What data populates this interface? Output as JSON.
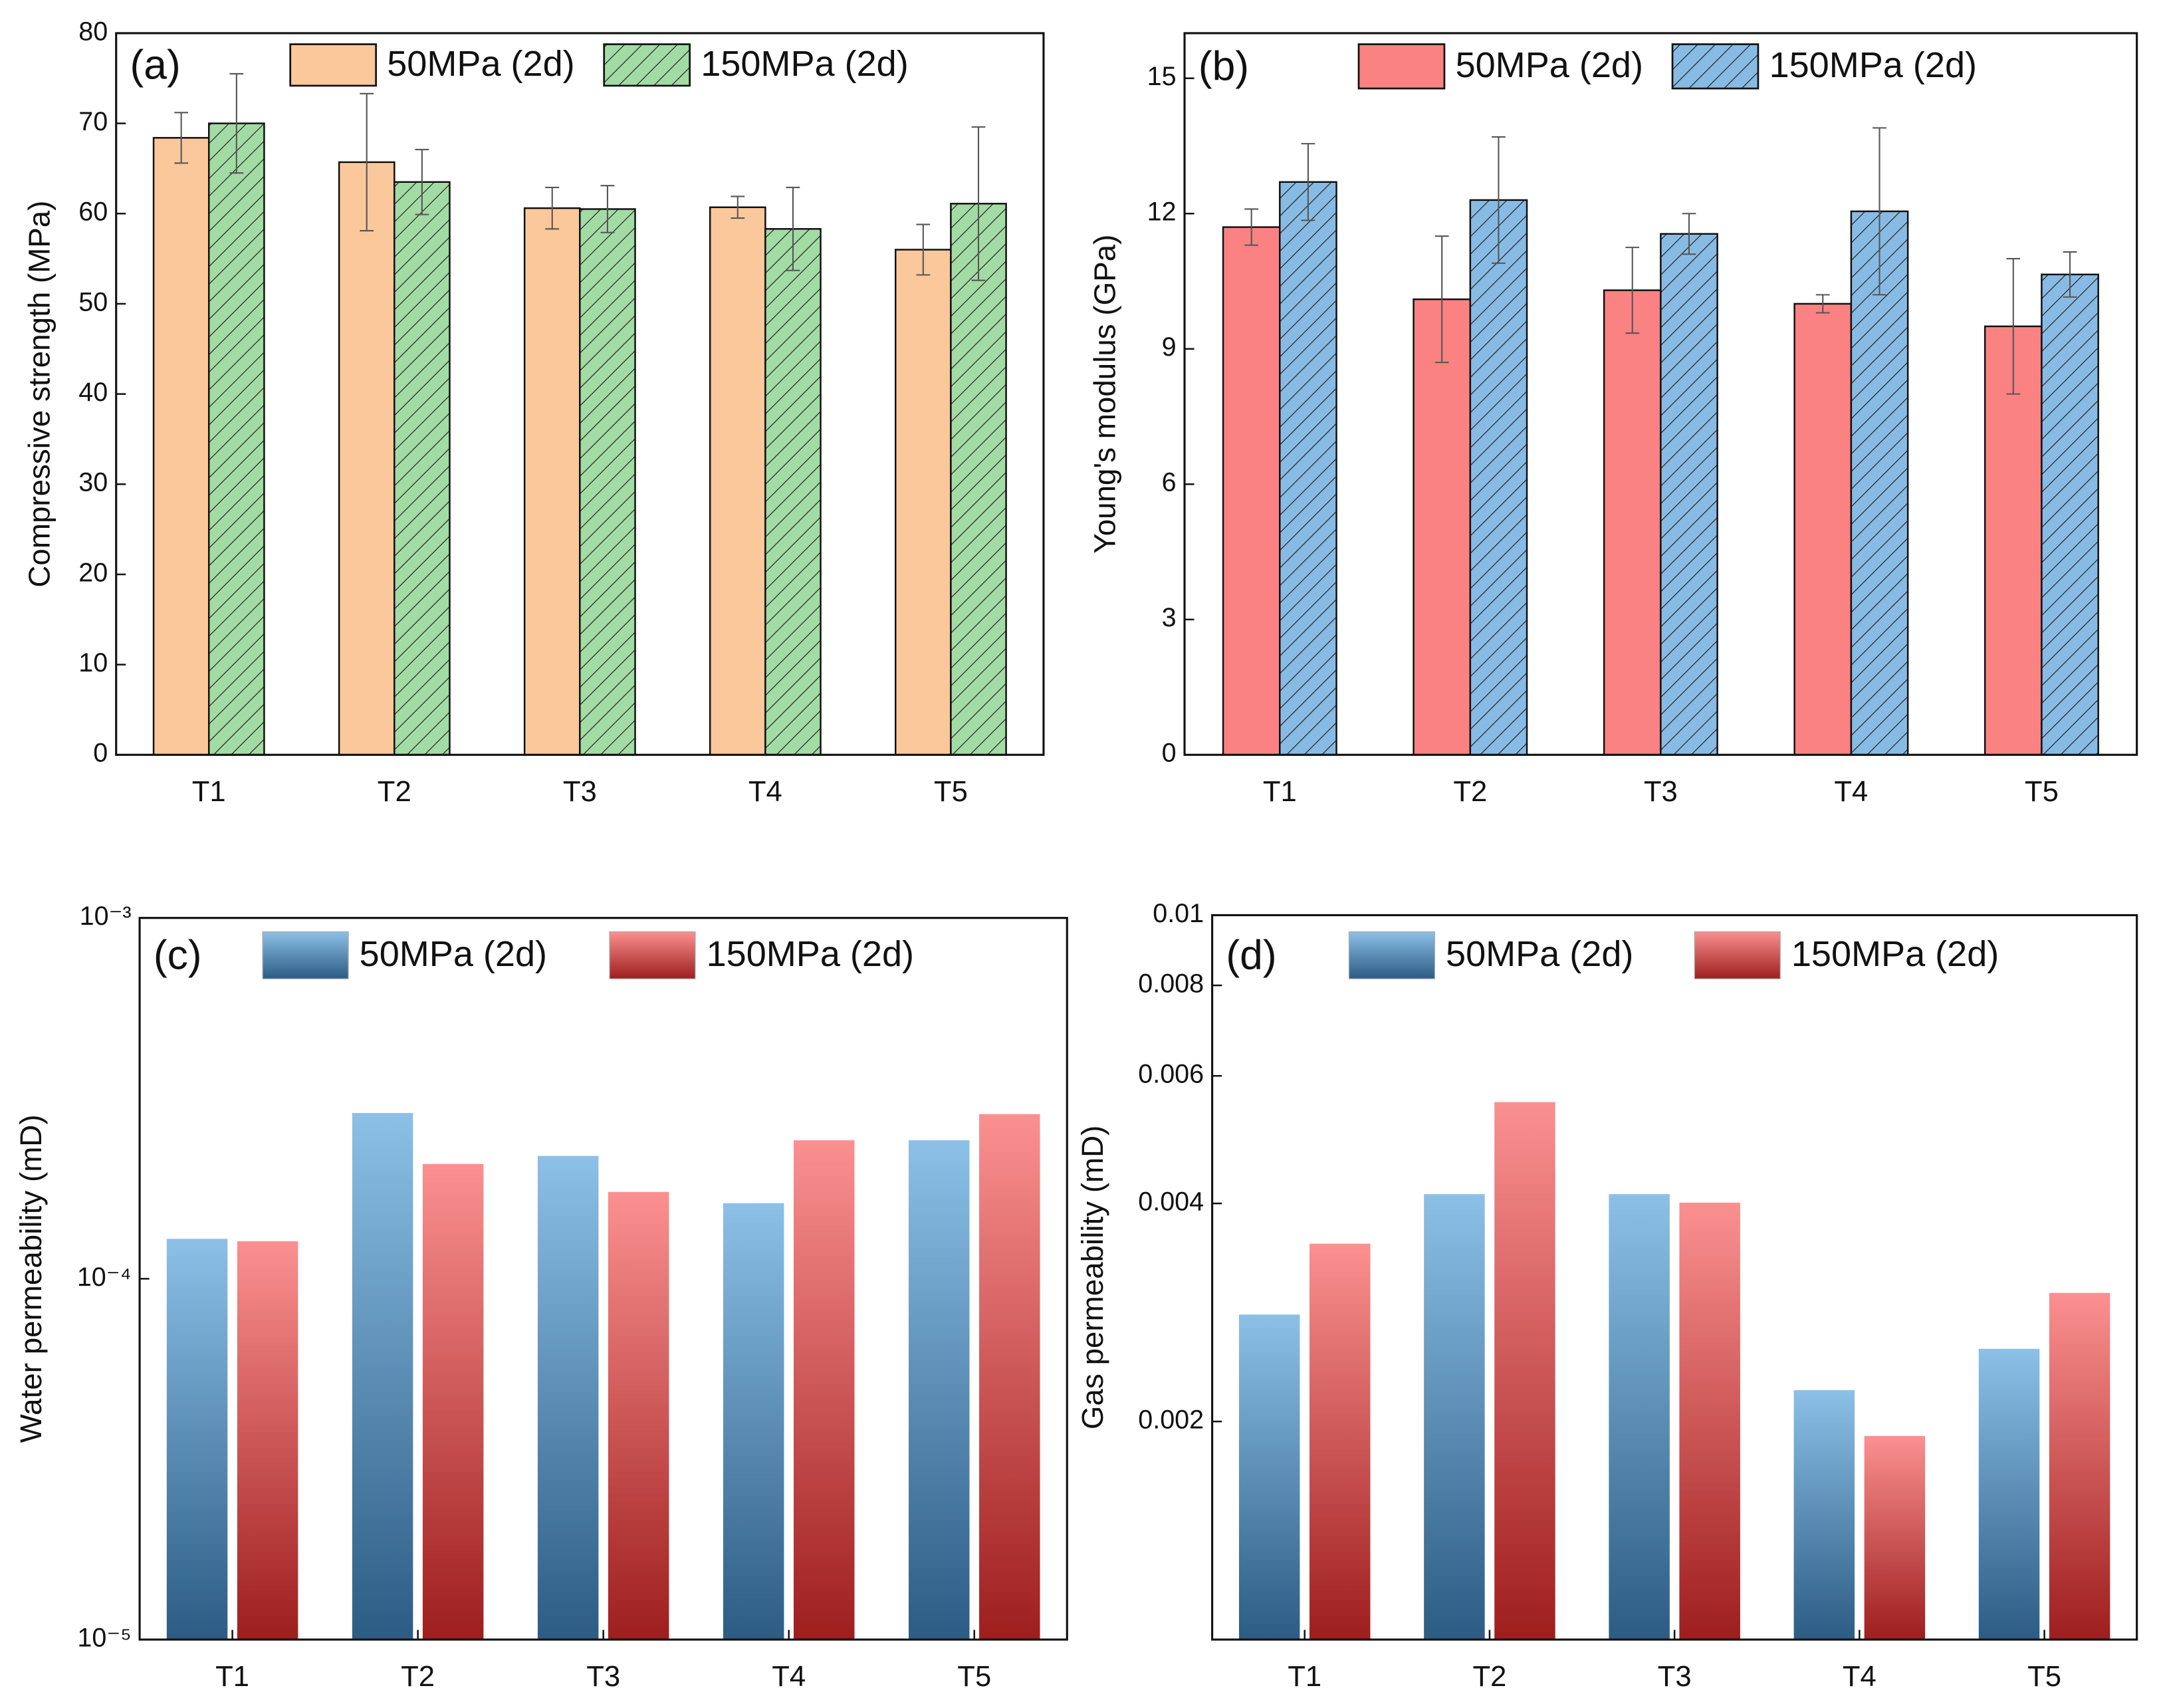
{
  "chart_data": [
    {
      "type": "bar",
      "panel_label": "(a)",
      "y_label": "Compressive strength (MPa)",
      "categories": [
        "T1",
        "T2",
        "T3",
        "T4",
        "T5"
      ],
      "series": [
        {
          "name": "50MPa (2d)",
          "color": "#fac89b",
          "hatch": false,
          "values": [
            68.4,
            65.7,
            60.6,
            60.7,
            56.0
          ],
          "errors": [
            2.8,
            7.6,
            2.3,
            1.2,
            2.8
          ]
        },
        {
          "name": "150MPa (2d)",
          "color": "#a3dba4",
          "hatch": true,
          "values": [
            70.0,
            63.5,
            60.5,
            58.3,
            61.1
          ],
          "errors": [
            5.5,
            3.6,
            2.6,
            4.6,
            8.5
          ]
        }
      ],
      "ylim": [
        0,
        80
      ],
      "yticks": [
        0,
        10,
        20,
        30,
        40,
        50,
        60,
        70,
        80
      ],
      "log_scale": false
    },
    {
      "type": "bar",
      "panel_label": "(b)",
      "y_label": "Young's modulus (GPa)",
      "categories": [
        "T1",
        "T2",
        "T3",
        "T4",
        "T5"
      ],
      "series": [
        {
          "name": "50MPa (2d)",
          "color": "#fb8282",
          "hatch": false,
          "values": [
            11.7,
            10.1,
            10.3,
            10.0,
            9.5
          ],
          "errors": [
            0.4,
            1.4,
            0.95,
            0.2,
            1.5
          ]
        },
        {
          "name": "150MPa (2d)",
          "color": "#88bbe4",
          "hatch": true,
          "values": [
            12.7,
            12.3,
            11.55,
            12.05,
            10.65
          ],
          "errors": [
            0.85,
            1.4,
            0.45,
            1.85,
            0.5
          ]
        }
      ],
      "ylim": [
        0,
        16
      ],
      "yticks": [
        0,
        3,
        6,
        9,
        12,
        15
      ],
      "log_scale": false
    },
    {
      "type": "bar",
      "panel_label": "(c)",
      "y_label": "Water permeability (mD)",
      "categories": [
        "T1",
        "T2",
        "T3",
        "T4",
        "T5"
      ],
      "series": [
        {
          "name": "50MPa (2d)",
          "color": "#8cc0e6",
          "gradient_to": "#2c5c84",
          "values": [
            0.000129,
            0.000288,
            0.000219,
            0.000162,
            0.000242
          ]
        },
        {
          "name": "150MPa (2d)",
          "color": "#fb9090",
          "gradient_to": "#9e1e1e",
          "values": [
            0.000127,
            0.000208,
            0.000174,
            0.000242,
            0.000286
          ]
        }
      ],
      "ylim": [
        1e-05,
        0.001
      ],
      "yticks": [
        {
          "value": 1e-05,
          "label": "10⁻⁵"
        },
        {
          "value": 0.0001,
          "label": "10⁻⁴"
        },
        {
          "value": 0.001,
          "label": "10⁻³"
        }
      ],
      "log_scale": true
    },
    {
      "type": "bar",
      "panel_label": "(d)",
      "y_label": "Gas permeability (mD)",
      "categories": [
        "T1",
        "T2",
        "T3",
        "T4",
        "T5"
      ],
      "series": [
        {
          "name": "50MPa (2d)",
          "color": "#8cc0e6",
          "gradient_to": "#2c5c84",
          "values": [
            0.00281,
            0.00412,
            0.00412,
            0.00221,
            0.00252
          ]
        },
        {
          "name": "150MPa (2d)",
          "color": "#fb9090",
          "gradient_to": "#9e1e1e",
          "values": [
            0.00352,
            0.00552,
            0.00401,
            0.00191,
            0.00301
          ]
        }
      ],
      "ylim": [
        0.001,
        0.01
      ],
      "yticks": [
        0.002,
        0.004,
        0.006,
        0.008,
        0.01
      ],
      "log_scale": true
    }
  ]
}
